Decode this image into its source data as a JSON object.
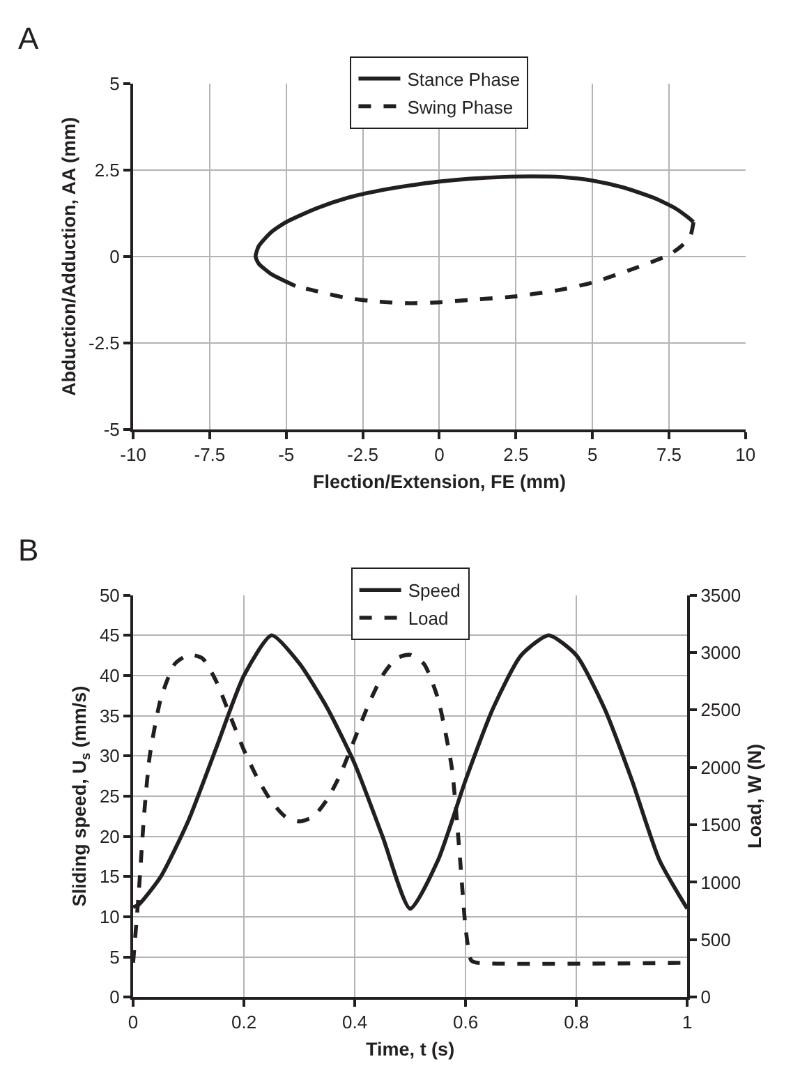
{
  "chart_data": [
    {
      "type": "line",
      "title": "A",
      "xlabel": "Flection/Extension, FE (mm)",
      "ylabel": "Abduction/Adduction, AA (mm)",
      "xlim": [
        -10,
        10
      ],
      "xticks": [
        -10,
        -7.5,
        -5,
        -2.5,
        0,
        2.5,
        5,
        7.5,
        10
      ],
      "ylim": [
        -5,
        5
      ],
      "yticks": [
        -5,
        -2.5,
        0,
        2.5,
        5
      ],
      "grid": true,
      "legend": "top",
      "marker": "none",
      "series": [
        {
          "name": "Stance Phase",
          "color": "#231f20",
          "line_style": "solid",
          "x": [
            -4.7,
            -5.5,
            -5.9,
            -6,
            -5.9,
            -5.5,
            -5,
            -4,
            -3,
            -2,
            -1,
            0,
            1,
            2,
            3,
            4,
            5,
            6,
            7,
            7.7,
            8.1,
            8.3
          ],
          "values": [
            -0.85,
            -0.5,
            -0.2,
            0,
            0.3,
            0.7,
            1.0,
            1.4,
            1.7,
            1.9,
            2.05,
            2.17,
            2.25,
            2.3,
            2.32,
            2.3,
            2.2,
            2.0,
            1.7,
            1.4,
            1.15,
            1.0
          ]
        },
        {
          "name": "Swing Phase",
          "color": "#231f20",
          "line_style": "dashed",
          "x": [
            8.3,
            8.2,
            7.9,
            7.5,
            6.5,
            5,
            4,
            2.5,
            1,
            0,
            -1,
            -2,
            -3,
            -4,
            -4.7
          ],
          "values": [
            1.0,
            0.6,
            0.3,
            0.05,
            -0.3,
            -0.75,
            -0.95,
            -1.15,
            -1.25,
            -1.32,
            -1.35,
            -1.3,
            -1.2,
            -1.0,
            -0.85
          ]
        }
      ]
    },
    {
      "type": "line",
      "title": "B",
      "xlabel": "Time, t (s)",
      "ylabel": "Sliding speed, U$_{s}$ (mm/s)",
      "y2label": "Load, W (N)",
      "xlim": [
        0,
        1
      ],
      "xticks": [
        0,
        0.2,
        0.4,
        0.6,
        0.8,
        1
      ],
      "ylim": [
        0,
        50
      ],
      "yticks": [
        0,
        5,
        10,
        15,
        20,
        25,
        30,
        35,
        40,
        45,
        50
      ],
      "y2lim": [
        0,
        3500
      ],
      "y2ticks": [
        0,
        500,
        1000,
        1500,
        2000,
        2500,
        3000,
        3500
      ],
      "grid": true,
      "legend": "top",
      "marker": "none",
      "series": [
        {
          "name": "Speed",
          "color": "#231f20",
          "line_style": "solid",
          "x": [
            0,
            0.01,
            0.05,
            0.1,
            0.15,
            0.2,
            0.25,
            0.3,
            0.35,
            0.4,
            0.45,
            0.5,
            0.55,
            0.6,
            0.65,
            0.7,
            0.75,
            0.8,
            0.85,
            0.9,
            0.95,
            1
          ],
          "values": [
            11.2,
            11.5,
            15,
            22,
            31,
            40,
            45,
            41.5,
            36,
            29,
            20,
            11,
            17,
            27,
            36,
            42.5,
            45,
            42.5,
            36,
            27,
            17,
            11
          ]
        },
        {
          "name": "Load",
          "color": "#231f20",
          "line_style": "dashed",
          "axis": "y2",
          "x": [
            0,
            0.01,
            0.02,
            0.03,
            0.05,
            0.075,
            0.1,
            0.125,
            0.15,
            0.175,
            0.2,
            0.225,
            0.25,
            0.275,
            0.3,
            0.325,
            0.35,
            0.375,
            0.4,
            0.425,
            0.45,
            0.475,
            0.5,
            0.525,
            0.55,
            0.575,
            0.59,
            0.6,
            0.61,
            0.62,
            1
          ],
          "values": [
            300,
            900,
            1600,
            2100,
            2600,
            2900,
            2980,
            2950,
            2750,
            2450,
            2150,
            1900,
            1700,
            1570,
            1530,
            1570,
            1720,
            1950,
            2250,
            2550,
            2800,
            2950,
            2980,
            2900,
            2600,
            2000,
            1200,
            600,
            320,
            300,
            300
          ]
        }
      ]
    }
  ]
}
